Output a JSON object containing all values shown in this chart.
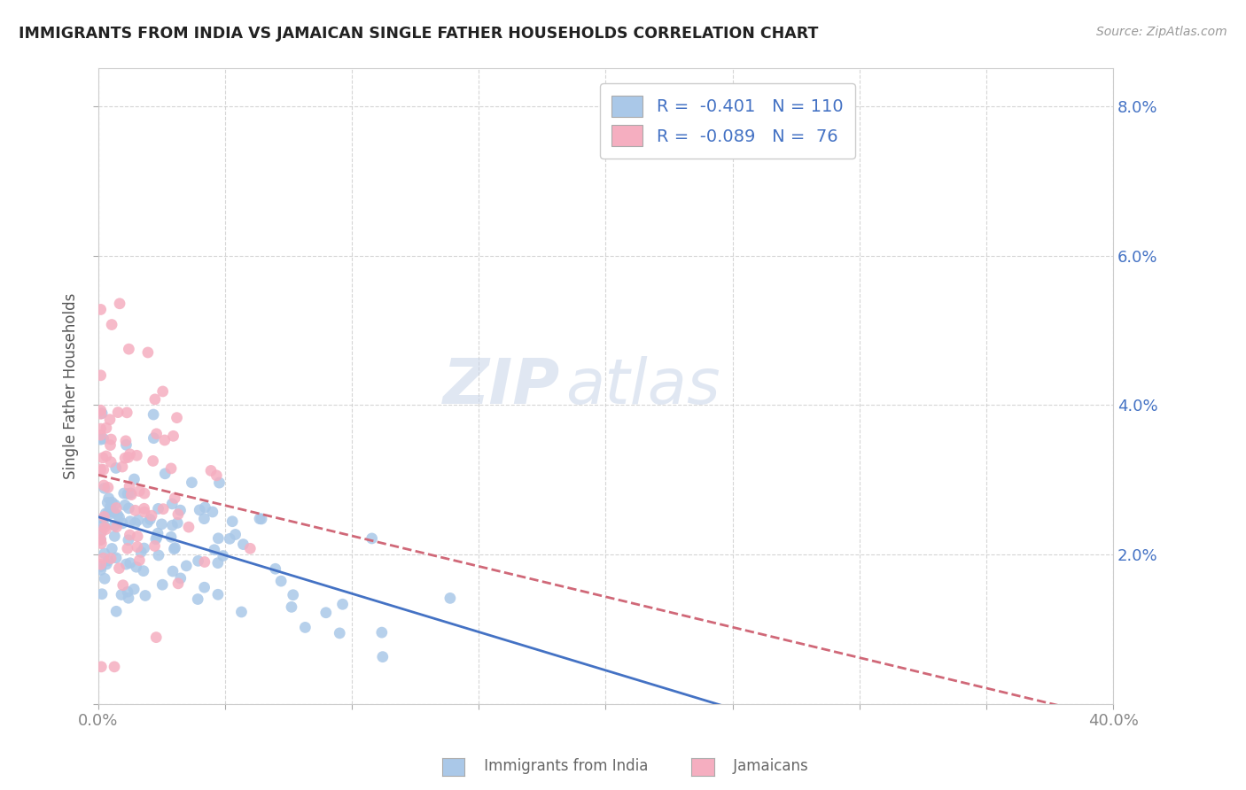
{
  "title": "IMMIGRANTS FROM INDIA VS JAMAICAN SINGLE FATHER HOUSEHOLDS CORRELATION CHART",
  "source": "Source: ZipAtlas.com",
  "ylabel": "Single Father Households",
  "xlim": [
    0.0,
    0.4
  ],
  "ylim": [
    0.0,
    0.085
  ],
  "india_r": -0.401,
  "india_n": 110,
  "jamaica_r": -0.089,
  "jamaica_n": 76,
  "watermark_zip": "ZIP",
  "watermark_atlas": "atlas",
  "india_scatter_color": "#aac8e8",
  "jamaica_scatter_color": "#f5aec0",
  "india_line_color": "#4472c4",
  "jamaica_line_color": "#d06878",
  "grid_color": "#cccccc",
  "background_color": "#ffffff",
  "title_color": "#222222",
  "axis_label_color": "#555555",
  "tick_color": "#888888",
  "right_tick_color": "#4472c4",
  "source_color": "#999999",
  "legend_r_color": "#4472c4",
  "legend_text_color": "#333333",
  "bottom_legend_color": "#666666"
}
